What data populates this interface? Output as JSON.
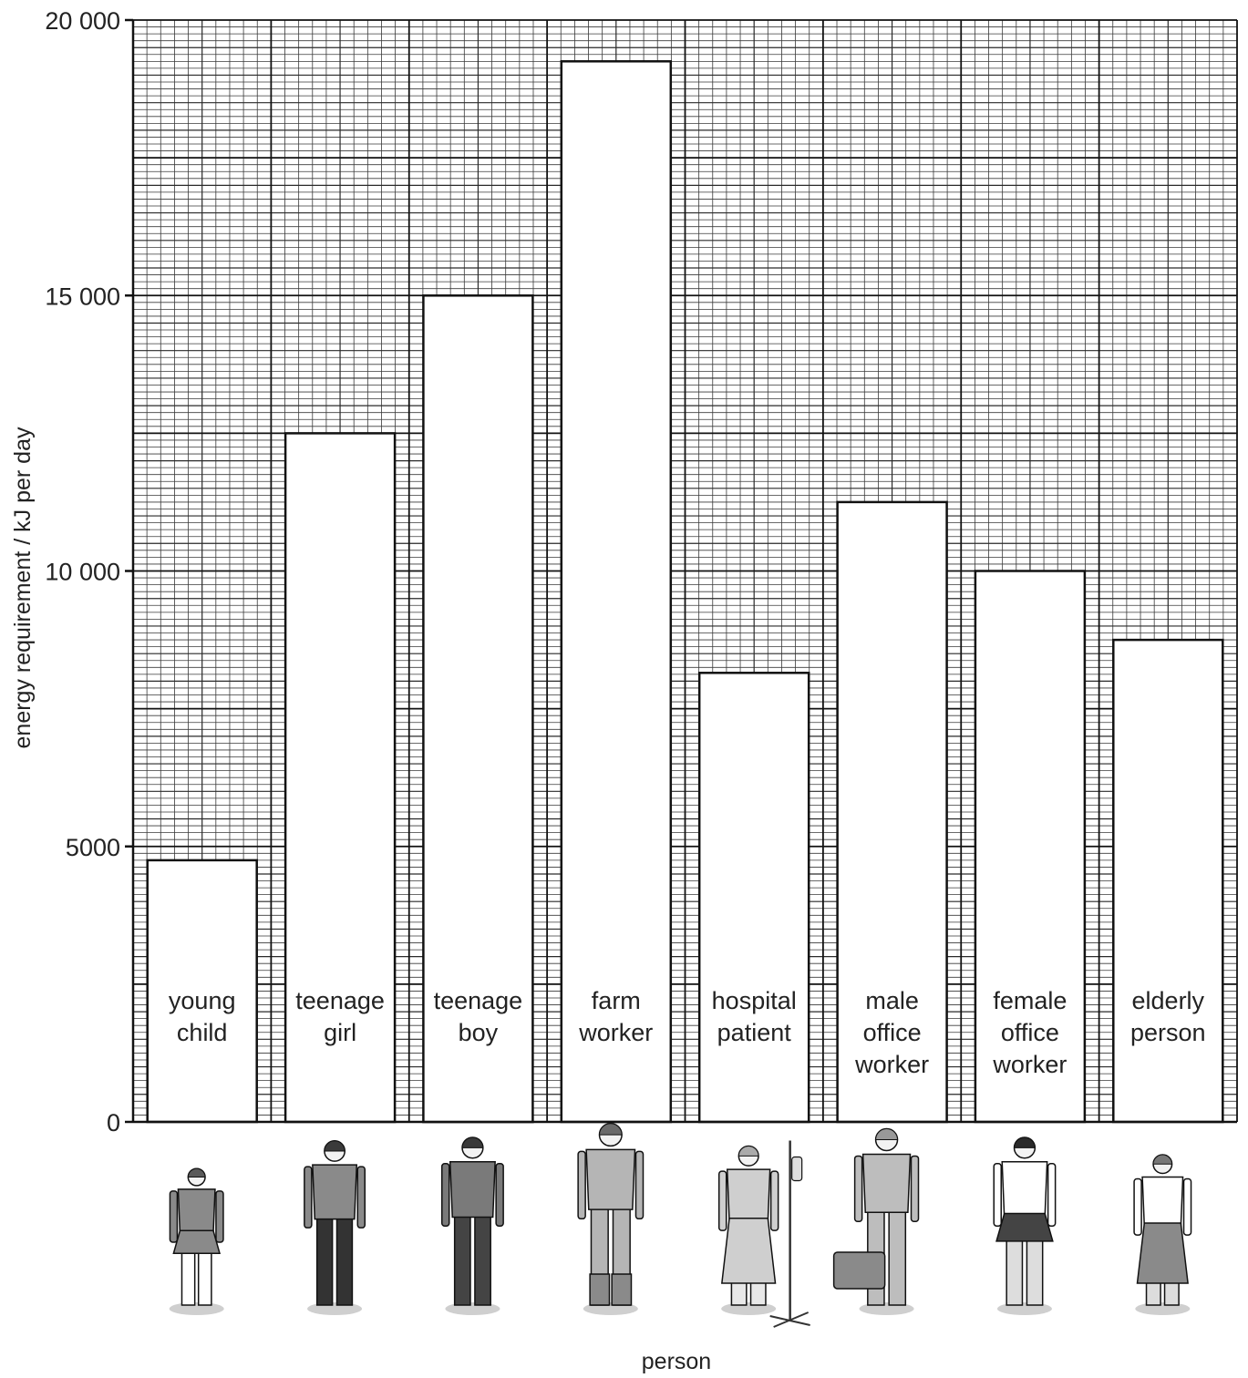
{
  "chart_data": {
    "type": "bar",
    "xlabel": "person",
    "ylabel": "energy requirement / kJ per day",
    "ylim": [
      0,
      20000
    ],
    "yticks": [
      0,
      5000,
      10000,
      15000,
      20000
    ],
    "ytick_labels": [
      "0",
      "5000",
      "10 000",
      "15 000",
      "20 000"
    ],
    "grid": true,
    "categories": [
      "young child",
      "teenage girl",
      "teenage boy",
      "farm worker",
      "hospital patient",
      "male office worker",
      "female office worker",
      "elderly person"
    ],
    "category_label_lines": [
      [
        "young",
        "child"
      ],
      [
        "teenage",
        "girl"
      ],
      [
        "teenage",
        "boy"
      ],
      [
        "farm",
        "worker"
      ],
      [
        "hospital",
        "patient"
      ],
      [
        "male",
        "office",
        "worker"
      ],
      [
        "female",
        "office",
        "worker"
      ],
      [
        "elderly",
        "person"
      ]
    ],
    "values": [
      4750,
      12500,
      15000,
      19250,
      8150,
      11250,
      10000,
      8750
    ],
    "figures": [
      "young-child-figure-icon",
      "teenage-girl-figure-icon",
      "teenage-boy-figure-icon",
      "farm-worker-figure-icon",
      "hospital-patient-figure-icon",
      "male-office-worker-figure-icon",
      "female-office-worker-figure-icon",
      "elderly-person-figure-icon"
    ]
  }
}
